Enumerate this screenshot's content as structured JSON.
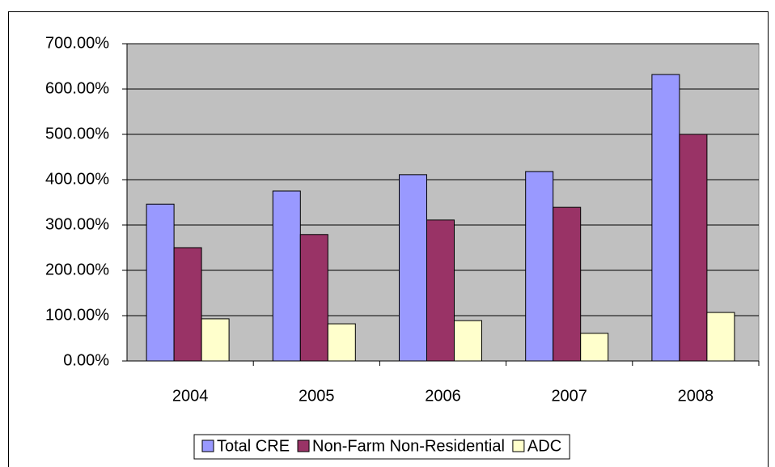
{
  "chart_data": {
    "type": "bar",
    "categories": [
      "2004",
      "2005",
      "2006",
      "2007",
      "2008"
    ],
    "series": [
      {
        "name": "Total CRE",
        "color": "#9999ff",
        "values": [
          346,
          375,
          411,
          418,
          632
        ]
      },
      {
        "name": "Non-Farm Non-Residential",
        "color": "#993366",
        "values": [
          250,
          279,
          311,
          339,
          500
        ]
      },
      {
        "name": "ADC",
        "color": "#ffffcc",
        "values": [
          93,
          82,
          89,
          61,
          107
        ]
      }
    ],
    "ylim": [
      0,
      700
    ],
    "yticks": [
      {
        "value": 0,
        "label": "0.00%"
      },
      {
        "value": 100,
        "label": "100.00%"
      },
      {
        "value": 200,
        "label": "200.00%"
      },
      {
        "value": 300,
        "label": "300.00%"
      },
      {
        "value": 400,
        "label": "400.00%"
      },
      {
        "value": 500,
        "label": "500.00%"
      },
      {
        "value": 600,
        "label": "600.00%"
      },
      {
        "value": 700,
        "label": "700.00%"
      }
    ],
    "grid": true,
    "plot_background": "#c0c0c0",
    "legend": "bottom"
  }
}
